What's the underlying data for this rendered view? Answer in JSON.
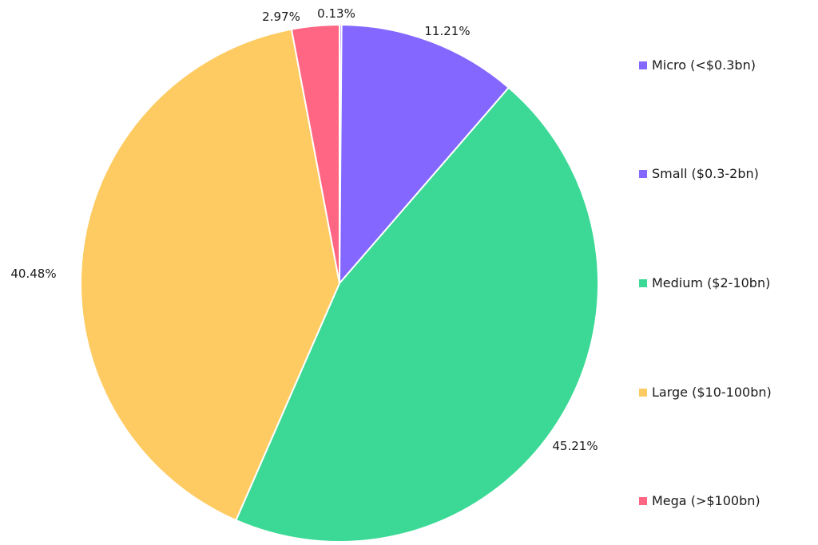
{
  "chart_data": {
    "type": "pie",
    "title": "",
    "start_angle_deg": 0,
    "direction": "clockwise",
    "legend_position": "right",
    "slices": [
      {
        "name": "Micro (<$0.3bn)",
        "value": 0.13,
        "label": "0.13%",
        "color": "#8367ff"
      },
      {
        "name": "Small ($0.3-2bn)",
        "value": 11.21,
        "label": "11.21%",
        "color": "#8367ff"
      },
      {
        "name": "Medium ($2-10bn)",
        "value": 45.21,
        "label": "45.21%",
        "color": "#3bd995"
      },
      {
        "name": "Large ($10-100bn)",
        "value": 40.48,
        "label": "40.48%",
        "color": "#fecb62"
      },
      {
        "name": "Mega (>$100bn)",
        "value": 2.97,
        "label": "2.97%",
        "color": "#ff6683"
      }
    ]
  }
}
